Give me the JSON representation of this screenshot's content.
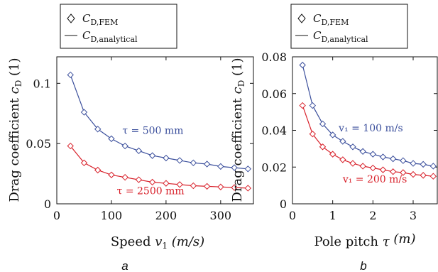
{
  "chart_data": [
    {
      "type": "line",
      "panel_label": "a",
      "ylabel": "Drag coefficient c_D (1)",
      "ylabel_main": "Drag coefficient ",
      "ylabel_var": "c",
      "ylabel_sub": "D",
      "ylabel_unit": " (1)",
      "xlabel": "Speed v_1 (m/s)",
      "xlabel_main": "Speed ",
      "xlabel_var": "v",
      "xlabel_sub": "1",
      "xlabel_unit": "  (m/s)",
      "xlim": [
        0,
        360
      ],
      "ylim": [
        0,
        0.122
      ],
      "xticks": [
        0,
        100,
        200,
        300
      ],
      "xtick_labels": [
        "0",
        "100",
        "200",
        "300"
      ],
      "yticks": [
        0,
        0.05,
        0.1
      ],
      "ytick_labels": [
        "0",
        "0.05",
        "0.1"
      ],
      "grid": false,
      "legend": {
        "placement": "top",
        "entries": [
          {
            "marker": "diamond",
            "label_main": "C",
            "label_sub": "D,FEM"
          },
          {
            "marker": "line",
            "label_main": "C",
            "label_sub": "D,analytical"
          }
        ]
      },
      "series": [
        {
          "color": "#3b4f9c",
          "annotation": "τ = 500 mm",
          "annotation_at": [
            120,
            0.058
          ],
          "x": [
            25,
            50,
            75,
            100,
            125,
            150,
            175,
            200,
            225,
            250,
            275,
            300,
            325,
            350
          ],
          "y": [
            0.107,
            0.076,
            0.062,
            0.054,
            0.048,
            0.044,
            0.04,
            0.038,
            0.036,
            0.034,
            0.033,
            0.031,
            0.03,
            0.029
          ]
        },
        {
          "color": "#d8202a",
          "annotation": "τ = 2500 mm",
          "annotation_at": [
            110,
            0.008
          ],
          "x": [
            25,
            50,
            75,
            100,
            125,
            150,
            175,
            200,
            225,
            250,
            275,
            300,
            325,
            350
          ],
          "y": [
            0.048,
            0.034,
            0.028,
            0.024,
            0.022,
            0.02,
            0.018,
            0.017,
            0.016,
            0.015,
            0.0145,
            0.014,
            0.0135,
            0.013
          ]
        }
      ]
    },
    {
      "type": "line",
      "panel_label": "b",
      "ylabel": "Drag coefficient c_D (1)",
      "ylabel_main": "Drag coefficient ",
      "ylabel_var": "c",
      "ylabel_sub": "D",
      "ylabel_unit": "  (1)",
      "xlabel": "Pole pitch τ (m)",
      "xlabel_main": "Pole pitch ",
      "xlabel_var": "τ",
      "xlabel_sub": "",
      "xlabel_unit": "  (m)",
      "xlim": [
        0,
        3.6
      ],
      "ylim": [
        0,
        0.08
      ],
      "xticks": [
        0,
        1,
        2,
        3
      ],
      "xtick_labels": [
        "0",
        "1",
        "2",
        "3"
      ],
      "yticks": [
        0,
        0.02,
        0.04,
        0.06,
        0.08
      ],
      "ytick_labels": [
        "0",
        "0.02",
        "0.04",
        "0.06",
        "0.08"
      ],
      "grid": false,
      "legend": {
        "placement": "top",
        "entries": [
          {
            "marker": "diamond",
            "label_main": "C",
            "label_sub": "D,FEM"
          },
          {
            "marker": "line",
            "label_main": "C",
            "label_sub": "D,analytical"
          }
        ]
      },
      "series": [
        {
          "color": "#3b4f9c",
          "annotation": "v₁ = 100 m/s",
          "annotation_at": [
            1.15,
            0.0395
          ],
          "x": [
            0.25,
            0.5,
            0.75,
            1.0,
            1.25,
            1.5,
            1.75,
            2.0,
            2.25,
            2.5,
            2.75,
            3.0,
            3.25,
            3.5
          ],
          "y": [
            0.0755,
            0.0535,
            0.0435,
            0.0375,
            0.034,
            0.031,
            0.0285,
            0.027,
            0.0255,
            0.0245,
            0.0235,
            0.022,
            0.0215,
            0.0205
          ]
        },
        {
          "color": "#d8202a",
          "annotation": "v₁ = 200 m/s",
          "annotation_at": [
            1.25,
            0.0115
          ],
          "x": [
            0.25,
            0.5,
            0.75,
            1.0,
            1.25,
            1.5,
            1.75,
            2.0,
            2.25,
            2.5,
            2.75,
            3.0,
            3.25,
            3.5
          ],
          "y": [
            0.0535,
            0.038,
            0.031,
            0.027,
            0.024,
            0.022,
            0.0205,
            0.0195,
            0.0185,
            0.0175,
            0.017,
            0.016,
            0.0155,
            0.015
          ]
        }
      ]
    }
  ]
}
